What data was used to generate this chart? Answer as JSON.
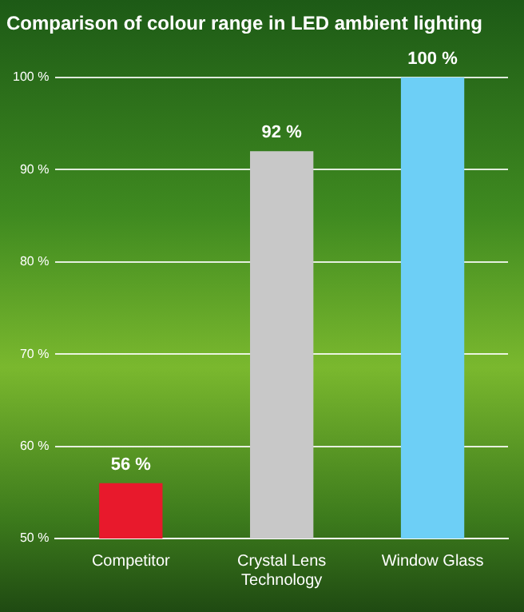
{
  "chart_data": {
    "type": "bar",
    "title": "Comparison of colour range in LED ambient lighting",
    "categories": [
      "Competitor",
      "Crystal Lens Technology",
      "Window Glass"
    ],
    "values": [
      56,
      92,
      100
    ],
    "colors": [
      "#e8192c",
      "#c8c8c8",
      "#6dcff6"
    ],
    "value_labels": [
      "56 %",
      "92 %",
      "100 %"
    ],
    "ylim": [
      50,
      100
    ],
    "yticks": [
      {
        "value": 50,
        "label": "50 %"
      },
      {
        "value": 60,
        "label": "60 %"
      },
      {
        "value": 70,
        "label": "70 %"
      },
      {
        "value": 80,
        "label": "80 %"
      },
      {
        "value": 90,
        "label": "90 %"
      },
      {
        "value": 100,
        "label": "100 %"
      }
    ],
    "grid": "y",
    "legend": false
  }
}
